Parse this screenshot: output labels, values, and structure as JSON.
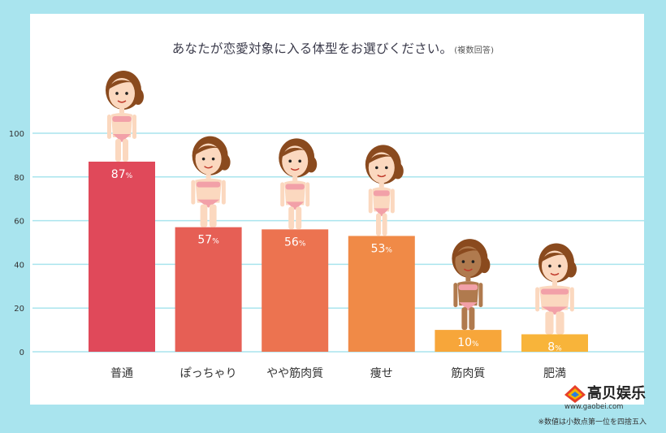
{
  "title": "あなたが恋愛対象に入る体型をお選びください。",
  "subtitle": "(複数回答)",
  "footnote": "※数値は小数点第一位を四捨五入",
  "watermark": {
    "name": "高贝娱乐",
    "url": "www.gaobei.com"
  },
  "colors": {
    "background": "#a9e4ee",
    "grid": "#a9e4ee"
  },
  "chart_data": {
    "type": "bar",
    "categories": [
      "普通",
      "ぽっちゃり",
      "やや筋肉質",
      "痩せ",
      "筋肉質",
      "肥満"
    ],
    "values": [
      87,
      57,
      56,
      53,
      10,
      8
    ],
    "value_labels": [
      "87%",
      "57%",
      "56%",
      "53%",
      "10%",
      "8%"
    ],
    "bar_colors": [
      "#e0495a",
      "#e65f55",
      "#ec7350",
      "#f08a47",
      "#f7a63a",
      "#f8b43a"
    ],
    "yticks": [
      0,
      20,
      40,
      60,
      80,
      100
    ],
    "ylim": [
      0,
      100
    ],
    "grid": true,
    "xlabel": "",
    "ylabel": ""
  }
}
